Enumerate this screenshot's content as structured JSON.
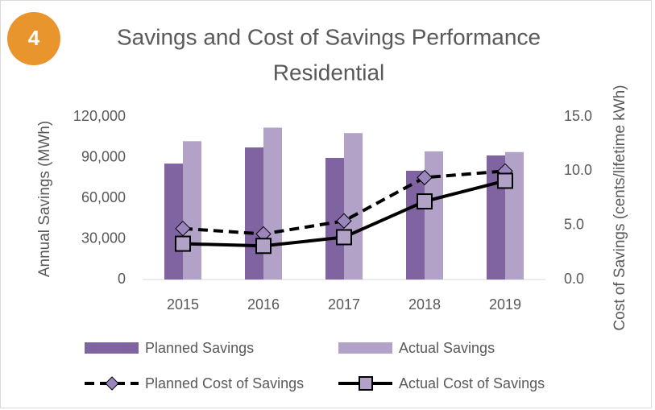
{
  "chart_data": {
    "type": "bar_line",
    "badge": "4",
    "title": [
      "Savings and Cost of Savings Performance",
      "Residential"
    ],
    "ylabel": "Annual Savings (MWh)",
    "y2label": "Cost of Savings (cents/lifetime kWh)",
    "categories": [
      "2015",
      "2016",
      "2017",
      "2018",
      "2019"
    ],
    "series": [
      {
        "name": "Planned Savings",
        "type": "bar",
        "color": "#8064a2",
        "values": [
          85500,
          97400,
          89700,
          80200,
          91500
        ]
      },
      {
        "name": "Actual Savings",
        "type": "bar",
        "color": "#b3a2c7",
        "values": [
          102000,
          112000,
          108000,
          94500,
          94000
        ]
      },
      {
        "name": "Planned Cost of Savings",
        "type": "line",
        "axis": "y2",
        "color": "#000000",
        "dashed": true,
        "marker": "diamond",
        "marker_color": "#9b85bd",
        "values": [
          4.7,
          4.2,
          5.4,
          9.4,
          10.0
        ]
      },
      {
        "name": "Actual Cost of Savings",
        "type": "line",
        "axis": "y2",
        "color": "#000000",
        "dashed": false,
        "marker": "square",
        "marker_color": "#b3a2c7",
        "values": [
          3.3,
          3.1,
          3.9,
          7.2,
          9.1
        ]
      }
    ],
    "ylim": [
      0,
      120000
    ],
    "yticks": [
      0,
      {
        "value": 30000,
        "label": "30,000"
      },
      {
        "value": 60000,
        "label": "60,000"
      },
      {
        "value": 90000,
        "label": "90,000"
      },
      {
        "value": 120000,
        "label": "120,000"
      }
    ],
    "y2lim": [
      0,
      15
    ],
    "y2ticks": [
      {
        "value": 0,
        "label": "0.0"
      },
      {
        "value": 5,
        "label": "5.0"
      },
      {
        "value": 10,
        "label": "10.0"
      },
      {
        "value": 15,
        "label": "15.0"
      }
    ],
    "grid": false
  }
}
